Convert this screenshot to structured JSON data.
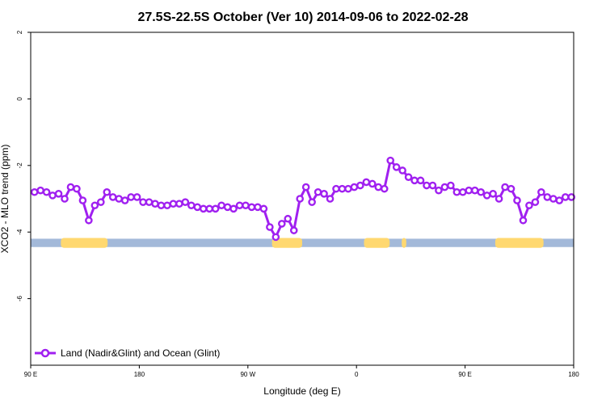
{
  "chart_data": {
    "type": "line",
    "title": "27.5S-22.5S October (Ver 10)   2014-09-06 to 2022-02-28",
    "xlabel": "Longitude (deg E)",
    "ylabel": "XCO2 - MLO trend (ppm)",
    "xlim": [
      90,
      450
    ],
    "ylim": [
      -8,
      2
    ],
    "x_ticks": [
      {
        "value": 90,
        "label": "90 E"
      },
      {
        "value": 162,
        "label": "180"
      },
      {
        "value": 234,
        "label": "90 W"
      },
      {
        "value": 306,
        "label": "0"
      },
      {
        "value": 378,
        "label": "90 E"
      },
      {
        "value": 450,
        "label": "180"
      }
    ],
    "y_ticks": [
      {
        "value": 2,
        "label": "2"
      },
      {
        "value": 0,
        "label": "0"
      },
      {
        "value": -2,
        "label": "-2"
      },
      {
        "value": -4,
        "label": "-4"
      },
      {
        "value": -6,
        "label": "-6"
      }
    ],
    "legend_position": "bottom-left",
    "colors": {
      "series": "#a020f0",
      "ocean": "#a3b9d9",
      "land": "#ffd870"
    },
    "series": [
      {
        "name": "Land (Nadir&Glint) and Ocean (Glint)",
        "x": [
          92.5,
          96.5,
          100.5,
          104.5,
          108.5,
          112.5,
          116.5,
          120.5,
          124.5,
          128.5,
          132.5,
          136.5,
          140.5,
          144.5,
          148.5,
          152.5,
          156.5,
          160.5,
          164.5,
          168.5,
          172.5,
          176.5,
          180.5,
          184.5,
          188.5,
          192.5,
          196.5,
          200.5,
          204.5,
          208.5,
          212.5,
          216.5,
          220.5,
          224.5,
          228.5,
          232.5,
          236.5,
          240.5,
          244.5,
          248.5,
          252.5,
          256.5,
          260.5,
          264.5,
          268.5,
          272.5,
          276.5,
          280.5,
          284.5,
          288.5,
          292.5,
          296.5,
          300.5,
          304.5,
          308.5,
          312.5,
          316.5,
          320.5,
          324.5,
          328.5,
          332.5,
          336.5,
          340.5,
          344.5,
          348.5,
          352.5,
          356.5,
          360.5,
          364.5,
          368.5,
          372.5,
          376.5,
          380.5,
          384.5,
          388.5,
          392.5,
          396.5,
          400.5,
          404.5,
          408.5,
          412.5,
          416.5,
          420.5,
          424.5,
          428.5,
          432.5,
          436.5,
          440.5,
          444.5,
          448.5
        ],
        "y": [
          -2.8,
          -2.75,
          -2.8,
          -2.9,
          -2.85,
          -3.0,
          -2.65,
          -2.7,
          -3.05,
          -3.65,
          -3.2,
          -3.1,
          -2.8,
          -2.95,
          -3.0,
          -3.05,
          -2.95,
          -2.95,
          -3.1,
          -3.1,
          -3.15,
          -3.2,
          -3.2,
          -3.15,
          -3.15,
          -3.1,
          -3.2,
          -3.25,
          -3.3,
          -3.3,
          -3.3,
          -3.2,
          -3.25,
          -3.3,
          -3.2,
          -3.2,
          -3.25,
          -3.25,
          -3.3,
          -3.85,
          -4.15,
          -3.75,
          -3.6,
          -3.95,
          -3.0,
          -2.65,
          -3.1,
          -2.8,
          -2.85,
          -3.0,
          -2.7,
          -2.7,
          -2.7,
          -2.65,
          -2.6,
          -2.5,
          -2.55,
          -2.65,
          -2.7,
          -1.85,
          -2.05,
          -2.15,
          -2.35,
          -2.45,
          -2.45,
          -2.6,
          -2.6,
          -2.75,
          -2.65,
          -2.6,
          -2.8,
          -2.8,
          -2.75,
          -2.75,
          -2.8,
          -2.9,
          -2.85,
          -3.0,
          -2.65,
          -2.7,
          -3.05,
          -3.65,
          -3.2,
          -3.1,
          -2.8,
          -2.95,
          -3.0,
          -3.05,
          -2.95,
          -2.95
        ]
      }
    ],
    "surface_band": {
      "y_range": [
        -4.45,
        -4.2
      ],
      "land_segments": [
        [
          110,
          141
        ],
        [
          250,
          270
        ],
        [
          311,
          328
        ],
        [
          336,
          339
        ],
        [
          398,
          430
        ]
      ]
    }
  }
}
